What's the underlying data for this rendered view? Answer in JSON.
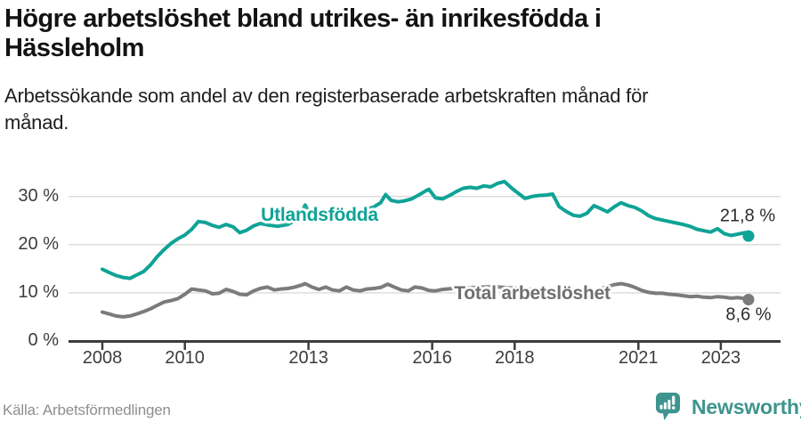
{
  "page": {
    "title_lines": [
      "Högre arbetslöshet bland utrikes- än inrikesfödda i",
      "Hässleholm"
    ],
    "subtitle_lines": [
      "Arbetssökande som andel av den registerbaserade arbetskraften månad för",
      "månad."
    ],
    "source": "Källa: Arbetsförmedlingen",
    "brand": {
      "name": "Newsworthy",
      "color": "#3E948E",
      "icon": "speech-bubble-bar-chart"
    }
  },
  "chart_data": {
    "type": "line",
    "title": "Högre arbetslöshet bland utrikes- än inrikesfödda i Hässleholm",
    "subtitle": "Arbetssökande som andel av den registerbaserade arbetskraften månad för månad.",
    "xlabel": "",
    "ylabel": "",
    "x_range": [
      2008,
      2023.7
    ],
    "ylim": [
      0,
      35
    ],
    "grid": "horizontal",
    "legend_position": "inline-on-line",
    "y_ticks": [
      {
        "value": 0,
        "label": "0 %"
      },
      {
        "value": 10,
        "label": "10 %"
      },
      {
        "value": 20,
        "label": "20 %"
      },
      {
        "value": 30,
        "label": "30 %"
      }
    ],
    "x_ticks": [
      {
        "value": 2008,
        "label": "2008"
      },
      {
        "value": 2010,
        "label": "2010"
      },
      {
        "value": 2013,
        "label": "2013"
      },
      {
        "value": 2016,
        "label": "2016"
      },
      {
        "value": 2018,
        "label": "2018"
      },
      {
        "value": 2021,
        "label": "2021"
      },
      {
        "value": 2023,
        "label": "2023"
      }
    ],
    "series": [
      {
        "name": "Utlandsfödda",
        "color": "#0FA396",
        "end_label": "21,8 %",
        "end_value": 21.8,
        "points": [
          [
            2008.0,
            14.9
          ],
          [
            2008.17,
            14.2
          ],
          [
            2008.33,
            13.6
          ],
          [
            2008.5,
            13.2
          ],
          [
            2008.67,
            13.0
          ],
          [
            2008.83,
            13.7
          ],
          [
            2009.0,
            14.4
          ],
          [
            2009.17,
            15.8
          ],
          [
            2009.33,
            17.5
          ],
          [
            2009.5,
            19.0
          ],
          [
            2009.67,
            20.3
          ],
          [
            2009.83,
            21.2
          ],
          [
            2010.0,
            22.0
          ],
          [
            2010.17,
            23.2
          ],
          [
            2010.33,
            24.8
          ],
          [
            2010.5,
            24.6
          ],
          [
            2010.67,
            24.0
          ],
          [
            2010.83,
            23.6
          ],
          [
            2011.0,
            24.2
          ],
          [
            2011.17,
            23.7
          ],
          [
            2011.33,
            22.5
          ],
          [
            2011.5,
            23.0
          ],
          [
            2011.67,
            23.9
          ],
          [
            2011.83,
            24.4
          ],
          [
            2012.0,
            24.1
          ],
          [
            2012.25,
            23.8
          ],
          [
            2012.5,
            24.2
          ],
          [
            2012.75,
            25.4
          ],
          [
            2012.92,
            28.2
          ],
          [
            2013.08,
            25.6
          ],
          [
            2013.33,
            25.3
          ],
          [
            2013.58,
            25.7
          ],
          [
            2013.83,
            26.2
          ],
          [
            2014.08,
            26.6
          ],
          [
            2014.33,
            27.2
          ],
          [
            2014.58,
            27.8
          ],
          [
            2014.75,
            28.7
          ],
          [
            2014.87,
            30.4
          ],
          [
            2015.0,
            29.2
          ],
          [
            2015.17,
            28.9
          ],
          [
            2015.33,
            29.1
          ],
          [
            2015.5,
            29.5
          ],
          [
            2015.67,
            30.3
          ],
          [
            2015.83,
            31.1
          ],
          [
            2015.92,
            31.5
          ],
          [
            2016.08,
            29.7
          ],
          [
            2016.25,
            29.5
          ],
          [
            2016.42,
            30.2
          ],
          [
            2016.58,
            31.0
          ],
          [
            2016.75,
            31.7
          ],
          [
            2016.92,
            31.9
          ],
          [
            2017.08,
            31.7
          ],
          [
            2017.25,
            32.2
          ],
          [
            2017.42,
            32.0
          ],
          [
            2017.58,
            32.7
          ],
          [
            2017.75,
            33.1
          ],
          [
            2017.92,
            31.8
          ],
          [
            2018.08,
            30.7
          ],
          [
            2018.25,
            29.6
          ],
          [
            2018.42,
            30.0
          ],
          [
            2018.58,
            30.2
          ],
          [
            2018.75,
            30.3
          ],
          [
            2018.92,
            30.5
          ],
          [
            2019.08,
            27.9
          ],
          [
            2019.25,
            26.9
          ],
          [
            2019.42,
            26.1
          ],
          [
            2019.58,
            25.9
          ],
          [
            2019.75,
            26.5
          ],
          [
            2019.92,
            28.1
          ],
          [
            2020.08,
            27.5
          ],
          [
            2020.25,
            26.8
          ],
          [
            2020.42,
            27.9
          ],
          [
            2020.58,
            28.7
          ],
          [
            2020.75,
            28.1
          ],
          [
            2020.92,
            27.7
          ],
          [
            2021.08,
            27.0
          ],
          [
            2021.25,
            26.0
          ],
          [
            2021.42,
            25.4
          ],
          [
            2021.58,
            25.1
          ],
          [
            2021.75,
            24.8
          ],
          [
            2021.92,
            24.5
          ],
          [
            2022.08,
            24.2
          ],
          [
            2022.25,
            23.8
          ],
          [
            2022.42,
            23.2
          ],
          [
            2022.58,
            22.9
          ],
          [
            2022.75,
            22.6
          ],
          [
            2022.92,
            23.3
          ],
          [
            2023.08,
            22.3
          ],
          [
            2023.25,
            21.9
          ],
          [
            2023.42,
            22.2
          ],
          [
            2023.58,
            22.5
          ],
          [
            2023.67,
            21.8
          ]
        ]
      },
      {
        "name": "Total arbetslöshet",
        "color": "#7B7B7B",
        "end_label": "8,6 %",
        "end_value": 8.6,
        "points": [
          [
            2008.0,
            6.0
          ],
          [
            2008.17,
            5.6
          ],
          [
            2008.33,
            5.2
          ],
          [
            2008.5,
            5.0
          ],
          [
            2008.67,
            5.2
          ],
          [
            2008.83,
            5.6
          ],
          [
            2009.0,
            6.1
          ],
          [
            2009.17,
            6.7
          ],
          [
            2009.33,
            7.4
          ],
          [
            2009.5,
            8.1
          ],
          [
            2009.67,
            8.4
          ],
          [
            2009.83,
            8.8
          ],
          [
            2010.0,
            9.7
          ],
          [
            2010.17,
            10.8
          ],
          [
            2010.33,
            10.6
          ],
          [
            2010.5,
            10.4
          ],
          [
            2010.67,
            9.8
          ],
          [
            2010.83,
            9.9
          ],
          [
            2011.0,
            10.7
          ],
          [
            2011.17,
            10.3
          ],
          [
            2011.33,
            9.7
          ],
          [
            2011.5,
            9.6
          ],
          [
            2011.67,
            10.4
          ],
          [
            2011.83,
            10.9
          ],
          [
            2012.0,
            11.2
          ],
          [
            2012.17,
            10.6
          ],
          [
            2012.33,
            10.8
          ],
          [
            2012.5,
            10.9
          ],
          [
            2012.67,
            11.2
          ],
          [
            2012.83,
            11.6
          ],
          [
            2012.92,
            11.9
          ],
          [
            2013.08,
            11.2
          ],
          [
            2013.25,
            10.7
          ],
          [
            2013.42,
            11.2
          ],
          [
            2013.58,
            10.6
          ],
          [
            2013.75,
            10.4
          ],
          [
            2013.92,
            11.2
          ],
          [
            2014.08,
            10.6
          ],
          [
            2014.25,
            10.4
          ],
          [
            2014.42,
            10.8
          ],
          [
            2014.58,
            10.9
          ],
          [
            2014.75,
            11.1
          ],
          [
            2014.92,
            11.8
          ],
          [
            2015.08,
            11.2
          ],
          [
            2015.25,
            10.6
          ],
          [
            2015.42,
            10.4
          ],
          [
            2015.58,
            11.2
          ],
          [
            2015.75,
            11.0
          ],
          [
            2015.92,
            10.5
          ],
          [
            2016.08,
            10.4
          ],
          [
            2016.25,
            10.7
          ],
          [
            2016.5,
            10.9
          ],
          [
            2016.75,
            11.0
          ],
          [
            2017.0,
            11.1
          ],
          [
            2017.25,
            11.2
          ],
          [
            2017.5,
            11.3
          ],
          [
            2017.75,
            11.1
          ],
          [
            2018.0,
            11.0
          ],
          [
            2018.25,
            10.8
          ],
          [
            2018.5,
            10.7
          ],
          [
            2018.75,
            10.5
          ],
          [
            2019.0,
            10.4
          ],
          [
            2019.25,
            10.3
          ],
          [
            2019.5,
            10.2
          ],
          [
            2019.75,
            10.3
          ],
          [
            2020.0,
            10.6
          ],
          [
            2020.25,
            11.3
          ],
          [
            2020.42,
            11.7
          ],
          [
            2020.58,
            11.9
          ],
          [
            2020.75,
            11.6
          ],
          [
            2020.92,
            11.1
          ],
          [
            2021.08,
            10.5
          ],
          [
            2021.25,
            10.1
          ],
          [
            2021.42,
            9.9
          ],
          [
            2021.58,
            9.9
          ],
          [
            2021.75,
            9.7
          ],
          [
            2021.92,
            9.6
          ],
          [
            2022.08,
            9.4
          ],
          [
            2022.25,
            9.2
          ],
          [
            2022.42,
            9.3
          ],
          [
            2022.58,
            9.1
          ],
          [
            2022.75,
            9.0
          ],
          [
            2022.92,
            9.2
          ],
          [
            2023.08,
            9.1
          ],
          [
            2023.25,
            8.9
          ],
          [
            2023.42,
            9.0
          ],
          [
            2023.58,
            8.8
          ],
          [
            2023.67,
            8.6
          ]
        ]
      }
    ]
  }
}
